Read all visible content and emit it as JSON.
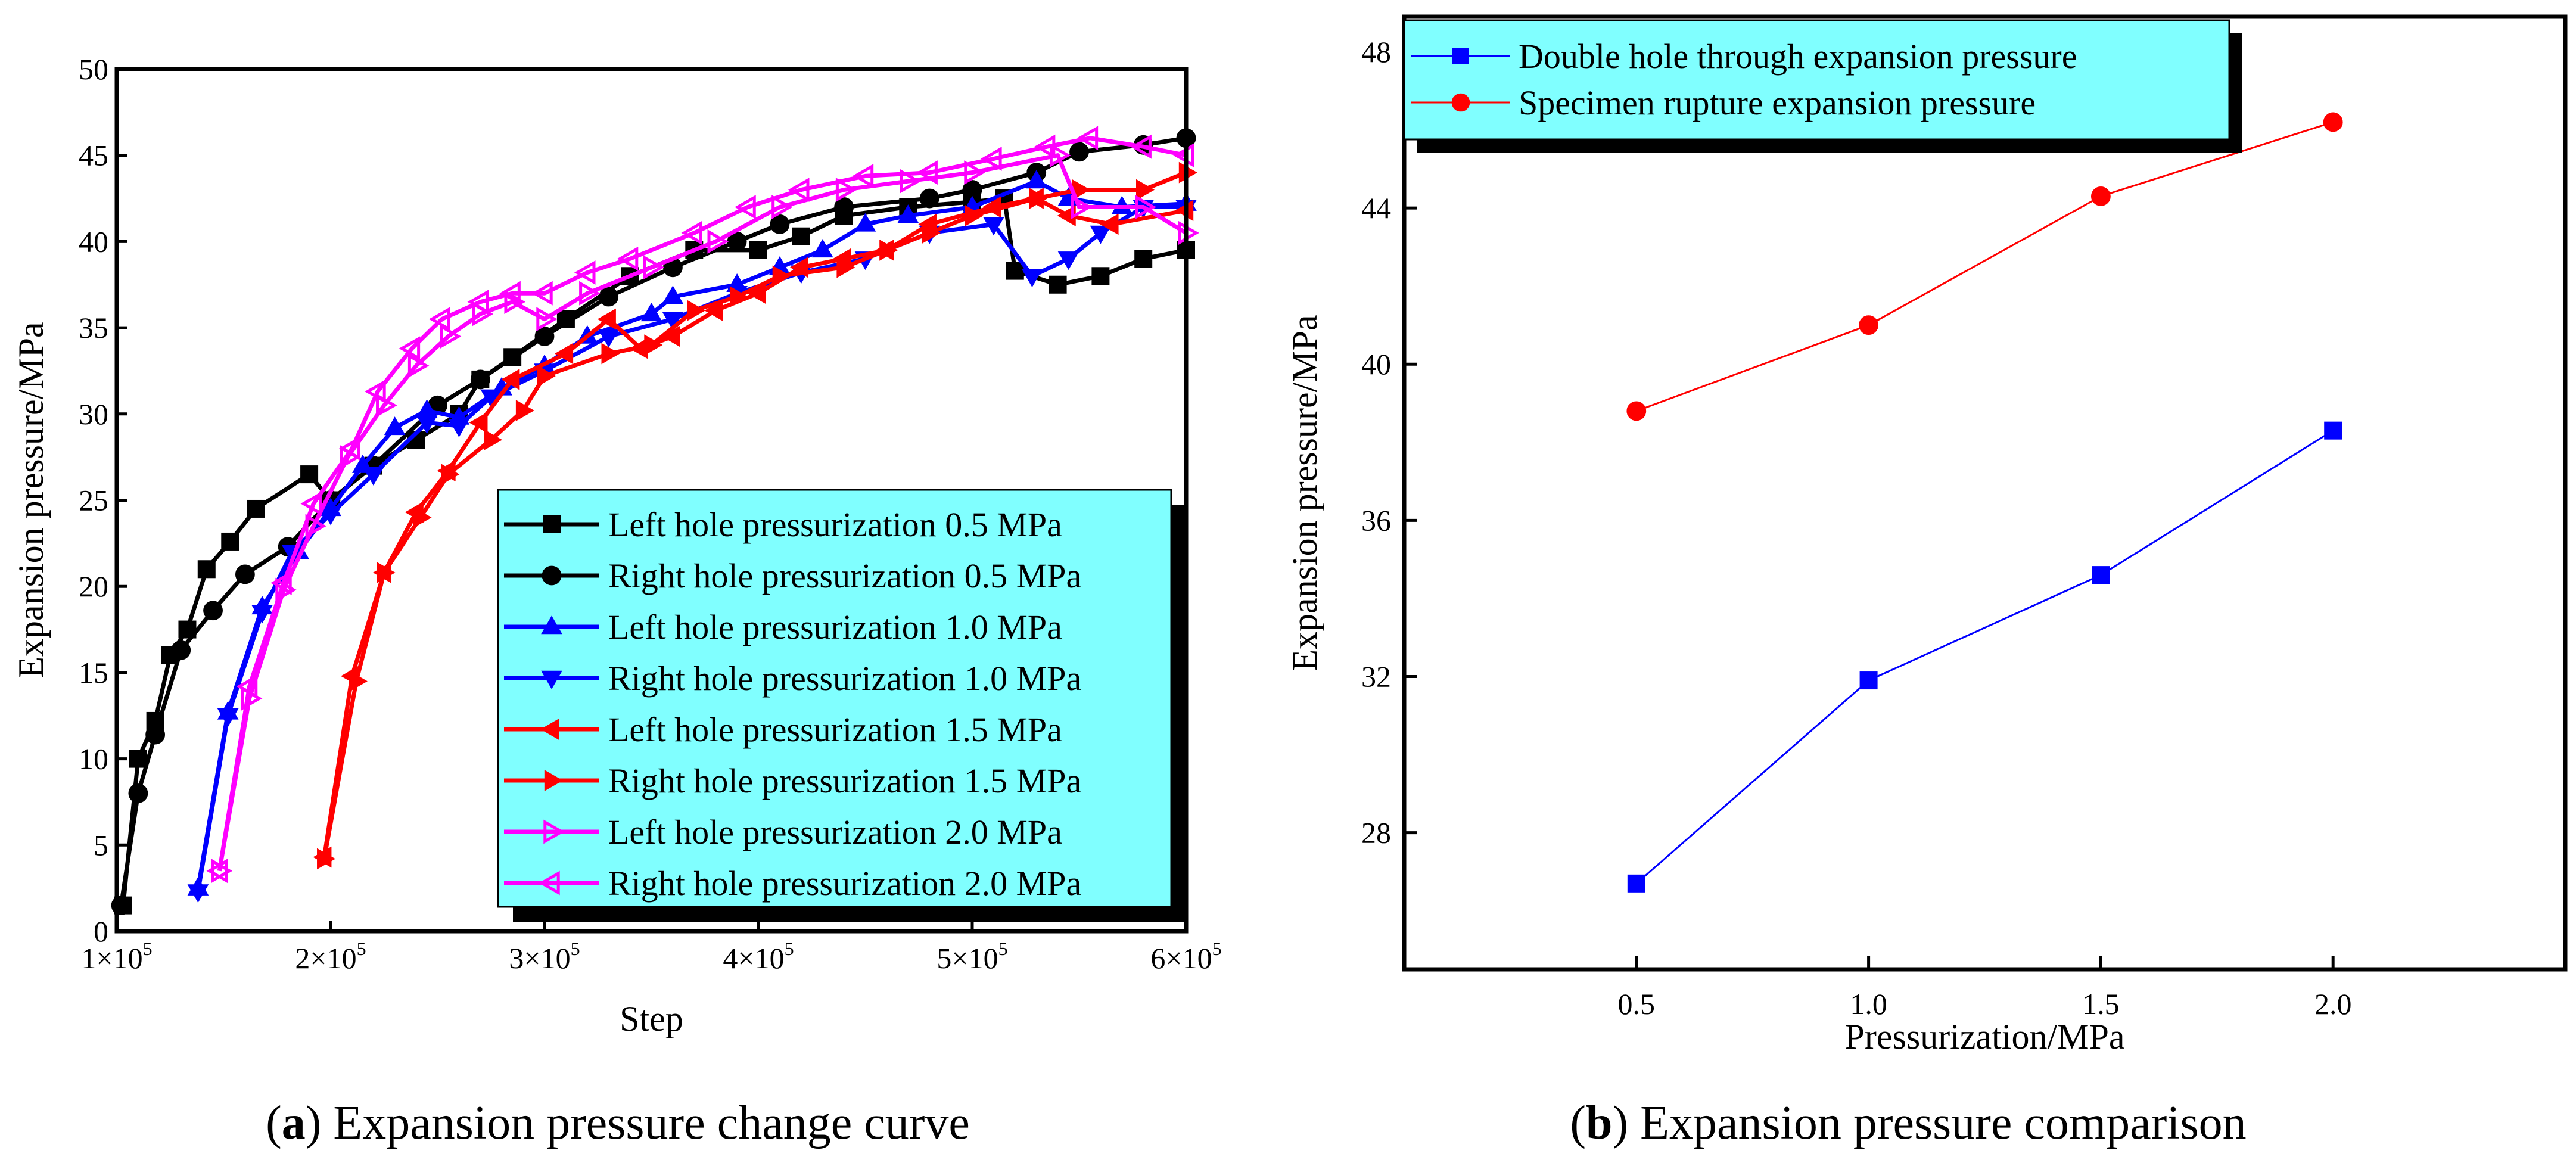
{
  "chart_data": [
    {
      "type": "line",
      "caption_letter": "a",
      "caption_text": " Expansion pressure change curve",
      "title": "",
      "xlabel": "Step",
      "ylabel": "Expansion pressure/MPa",
      "xlim": [
        1,
        6
      ],
      "x_unit_note": "x values in units of 10^5 steps",
      "ylim": [
        0,
        50
      ],
      "xticks": [
        {
          "v": 1,
          "base": "1×10",
          "exp": "5"
        },
        {
          "v": 2,
          "base": "2×10",
          "exp": "5"
        },
        {
          "v": 3,
          "base": "3×10",
          "exp": "5"
        },
        {
          "v": 4,
          "base": "4×10",
          "exp": "5"
        },
        {
          "v": 5,
          "base": "5×10",
          "exp": "5"
        },
        {
          "v": 6,
          "base": "6×10",
          "exp": "5"
        }
      ],
      "yticks": [
        "0",
        "5",
        "10",
        "15",
        "20",
        "25",
        "30",
        "35",
        "40",
        "45",
        "50"
      ],
      "grid": false,
      "legend_position": "bottom-right",
      "legend_bg": "#80ffff",
      "series": [
        {
          "name": "Left hole pressurization 0.5 MPa",
          "color": "#000000",
          "marker": "square",
          "points": [
            [
              1.03,
              1.5
            ],
            [
              1.1,
              10
            ],
            [
              1.18,
              12.2
            ],
            [
              1.25,
              16
            ],
            [
              1.33,
              17.5
            ],
            [
              1.42,
              21
            ],
            [
              1.53,
              22.6
            ],
            [
              1.65,
              24.5
            ],
            [
              1.9,
              26.5
            ],
            [
              2.0,
              25
            ],
            [
              2.2,
              27
            ],
            [
              2.4,
              28.5
            ],
            [
              2.6,
              30
            ],
            [
              2.7,
              32
            ],
            [
              2.85,
              33.3
            ],
            [
              3.1,
              35.5
            ],
            [
              3.4,
              38
            ],
            [
              3.7,
              39.5
            ],
            [
              4.0,
              39.5
            ],
            [
              4.2,
              40.3
            ],
            [
              4.4,
              41.5
            ],
            [
              4.7,
              42
            ],
            [
              5.0,
              42.3
            ],
            [
              5.15,
              42.5
            ],
            [
              5.2,
              38.3
            ],
            [
              5.4,
              37.5
            ],
            [
              5.6,
              38
            ],
            [
              5.8,
              39
            ],
            [
              6.0,
              39.5
            ]
          ]
        },
        {
          "name": "Right hole pressurization 0.5 MPa",
          "color": "#000000",
          "marker": "circle",
          "points": [
            [
              1.02,
              1.5
            ],
            [
              1.1,
              8
            ],
            [
              1.18,
              11.4
            ],
            [
              1.3,
              16.3
            ],
            [
              1.45,
              18.6
            ],
            [
              1.6,
              20.7
            ],
            [
              1.8,
              22.3
            ],
            [
              2.0,
              25
            ],
            [
              2.2,
              27
            ],
            [
              2.5,
              30.5
            ],
            [
              2.7,
              32
            ],
            [
              3.0,
              34.5
            ],
            [
              3.3,
              36.8
            ],
            [
              3.6,
              38.5
            ],
            [
              3.9,
              40
            ],
            [
              4.1,
              41
            ],
            [
              4.4,
              42
            ],
            [
              4.8,
              42.5
            ],
            [
              5.0,
              43
            ],
            [
              5.3,
              44
            ],
            [
              5.5,
              45.2
            ],
            [
              5.8,
              45.6
            ],
            [
              6.0,
              46
            ]
          ]
        },
        {
          "name": "Left hole pressurization 1.0 MPa",
          "color": "#0000ff",
          "marker": "triangle-up",
          "points": [
            [
              1.38,
              2.5
            ],
            [
              1.52,
              12.7
            ],
            [
              1.68,
              18.8
            ],
            [
              1.85,
              22
            ],
            [
              2.0,
              24.5
            ],
            [
              2.15,
              27
            ],
            [
              2.3,
              29.2
            ],
            [
              2.45,
              30.2
            ],
            [
              2.6,
              29.8
            ],
            [
              2.8,
              31.5
            ],
            [
              3.0,
              32.8
            ],
            [
              3.2,
              34.5
            ],
            [
              3.5,
              35.8
            ],
            [
              3.6,
              36.8
            ],
            [
              3.9,
              37.5
            ],
            [
              4.1,
              38.5
            ],
            [
              4.3,
              39.5
            ],
            [
              4.5,
              41
            ],
            [
              4.7,
              41.5
            ],
            [
              5.0,
              42
            ],
            [
              5.3,
              43.5
            ],
            [
              5.45,
              42.5
            ],
            [
              5.7,
              42
            ],
            [
              6.0,
              42.2
            ]
          ]
        },
        {
          "name": "Right hole pressurization 1.0 MPa",
          "color": "#0000ff",
          "marker": "triangle-down",
          "points": [
            [
              1.38,
              2.3
            ],
            [
              1.52,
              12.5
            ],
            [
              1.68,
              18.5
            ],
            [
              1.82,
              22
            ],
            [
              2.0,
              24.2
            ],
            [
              2.2,
              26.5
            ],
            [
              2.45,
              29.5
            ],
            [
              2.6,
              29.3
            ],
            [
              2.75,
              31
            ],
            [
              3.0,
              32.5
            ],
            [
              3.3,
              34.5
            ],
            [
              3.6,
              35.5
            ],
            [
              3.9,
              37
            ],
            [
              4.2,
              38.2
            ],
            [
              4.5,
              39
            ],
            [
              4.8,
              40.5
            ],
            [
              5.1,
              41
            ],
            [
              5.28,
              38
            ],
            [
              5.45,
              39
            ],
            [
              5.6,
              40.5
            ],
            [
              5.8,
              42
            ],
            [
              6.0,
              42
            ]
          ]
        },
        {
          "name": "Left hole pressurization 1.5 MPa",
          "color": "#ff0000",
          "marker": "triangle-left",
          "points": [
            [
              1.97,
              4.3
            ],
            [
              2.1,
              14.8
            ],
            [
              2.25,
              20.8
            ],
            [
              2.4,
              24.3
            ],
            [
              2.55,
              26.7
            ],
            [
              2.7,
              29.5
            ],
            [
              2.85,
              32
            ],
            [
              3.1,
              33.5
            ],
            [
              3.3,
              35.5
            ],
            [
              3.45,
              33.8
            ],
            [
              3.6,
              34.5
            ],
            [
              3.8,
              36
            ],
            [
              4.0,
              37
            ],
            [
              4.2,
              38.5
            ],
            [
              4.4,
              39
            ],
            [
              4.6,
              39.5
            ],
            [
              4.8,
              41
            ],
            [
              5.1,
              42
            ],
            [
              5.3,
              42.5
            ],
            [
              5.45,
              41.5
            ],
            [
              5.65,
              41
            ],
            [
              6.0,
              41.8
            ]
          ]
        },
        {
          "name": "Right hole pressurization 1.5 MPa",
          "color": "#ff0000",
          "marker": "triangle-right",
          "points": [
            [
              1.97,
              4.2
            ],
            [
              2.12,
              14.5
            ],
            [
              2.25,
              20.8
            ],
            [
              2.42,
              24
            ],
            [
              2.55,
              26.5
            ],
            [
              2.75,
              28.5
            ],
            [
              2.9,
              30.2
            ],
            [
              3.0,
              32.2
            ],
            [
              3.3,
              33.5
            ],
            [
              3.5,
              34
            ],
            [
              3.7,
              36
            ],
            [
              3.9,
              36.8
            ],
            [
              4.1,
              38
            ],
            [
              4.4,
              38.5
            ],
            [
              4.6,
              39.5
            ],
            [
              4.8,
              40.5
            ],
            [
              5.0,
              41.5
            ],
            [
              5.3,
              42.5
            ],
            [
              5.5,
              43
            ],
            [
              5.8,
              43
            ],
            [
              6.0,
              44
            ]
          ]
        },
        {
          "name": "Left hole pressurization 2.0 MPa",
          "color": "#ff00ff",
          "marker": "triangle-right-open",
          "points": [
            [
              1.48,
              3.5
            ],
            [
              1.62,
              13.5
            ],
            [
              1.78,
              19.8
            ],
            [
              1.92,
              23.5
            ],
            [
              2.08,
              27.5
            ],
            [
              2.25,
              30.5
            ],
            [
              2.4,
              32.8
            ],
            [
              2.55,
              34.5
            ],
            [
              2.7,
              35.8
            ],
            [
              2.85,
              36.5
            ],
            [
              3.0,
              35.5
            ],
            [
              3.2,
              37
            ],
            [
              3.5,
              38.5
            ],
            [
              3.8,
              40
            ],
            [
              4.1,
              42
            ],
            [
              4.4,
              43
            ],
            [
              4.7,
              43.5
            ],
            [
              5.0,
              44
            ],
            [
              5.4,
              45
            ],
            [
              5.5,
              42
            ],
            [
              5.8,
              42
            ],
            [
              6.0,
              40.5
            ]
          ]
        },
        {
          "name": "Right hole pressurization 2.0 MPa",
          "color": "#ff00ff",
          "marker": "triangle-left-open",
          "points": [
            [
              1.48,
              3.5
            ],
            [
              1.62,
              14.2
            ],
            [
              1.78,
              20.2
            ],
            [
              1.92,
              24.8
            ],
            [
              2.1,
              28
            ],
            [
              2.22,
              31.3
            ],
            [
              2.38,
              33.8
            ],
            [
              2.52,
              35.5
            ],
            [
              2.7,
              36.5
            ],
            [
              2.85,
              37
            ],
            [
              3.0,
              37
            ],
            [
              3.2,
              38.2
            ],
            [
              3.4,
              39
            ],
            [
              3.7,
              40.5
            ],
            [
              3.95,
              42
            ],
            [
              4.2,
              43
            ],
            [
              4.5,
              43.8
            ],
            [
              4.8,
              44
            ],
            [
              5.1,
              44.8
            ],
            [
              5.35,
              45.5
            ],
            [
              5.55,
              46
            ],
            [
              5.8,
              45.5
            ],
            [
              6.0,
              45
            ]
          ]
        }
      ]
    },
    {
      "type": "line",
      "caption_letter": "b",
      "caption_text": " Expansion pressure comparison",
      "title": "",
      "xlabel": "Pressurization/MPa",
      "ylabel": "Expansion pressure/MPa",
      "xlim": [
        0,
        2.5
      ],
      "ylim": [
        24.5,
        48.9
      ],
      "xticks": [
        "0.5",
        "1.0",
        "1.5",
        "2.0"
      ],
      "yticks": [
        "28",
        "32",
        "36",
        "40",
        "44",
        "48"
      ],
      "grid": false,
      "legend_position": "top-left",
      "legend_bg": "#80ffff",
      "categories": [
        0.5,
        1.0,
        1.5,
        2.0
      ],
      "series": [
        {
          "name": "Double hole through expansion pressure",
          "color": "#0000ff",
          "marker": "square",
          "values": [
            26.7,
            31.9,
            34.6,
            38.3
          ]
        },
        {
          "name": "Specimen rupture expansion pressure",
          "color": "#ff0000",
          "marker": "circle",
          "values": [
            38.8,
            41.0,
            44.3,
            46.2
          ]
        }
      ]
    }
  ]
}
